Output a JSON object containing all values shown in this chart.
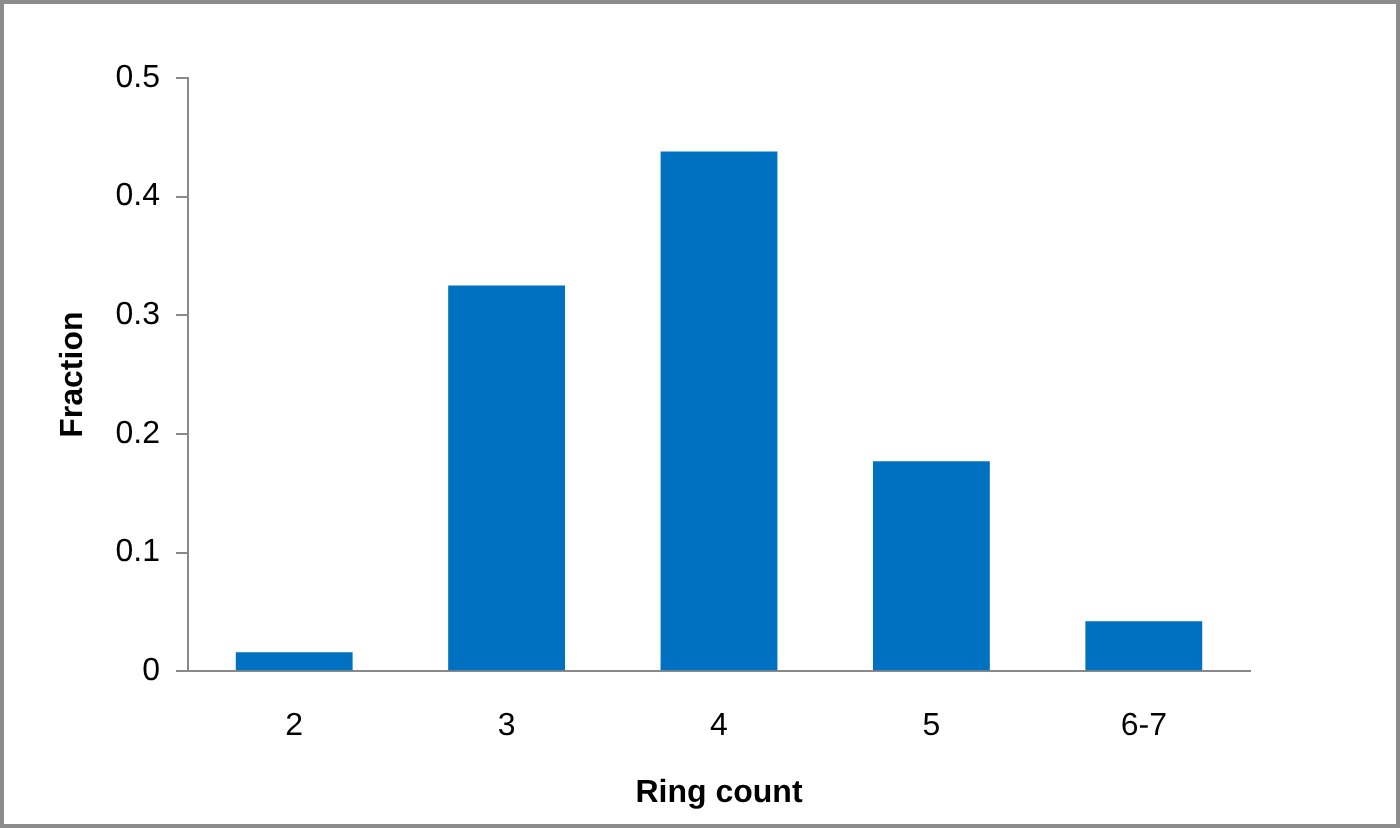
{
  "chart_data": {
    "type": "bar",
    "xlabel": "Ring count",
    "ylabel": "Fraction",
    "categories": [
      "2",
      "3",
      "4",
      "5",
      "6-7"
    ],
    "values": [
      0.016,
      0.325,
      0.438,
      0.177,
      0.042
    ],
    "color": "#0070c0",
    "ylim": [
      0,
      0.5
    ],
    "yticks": [
      0,
      0.1,
      0.2,
      0.3,
      0.4,
      0.5
    ]
  }
}
